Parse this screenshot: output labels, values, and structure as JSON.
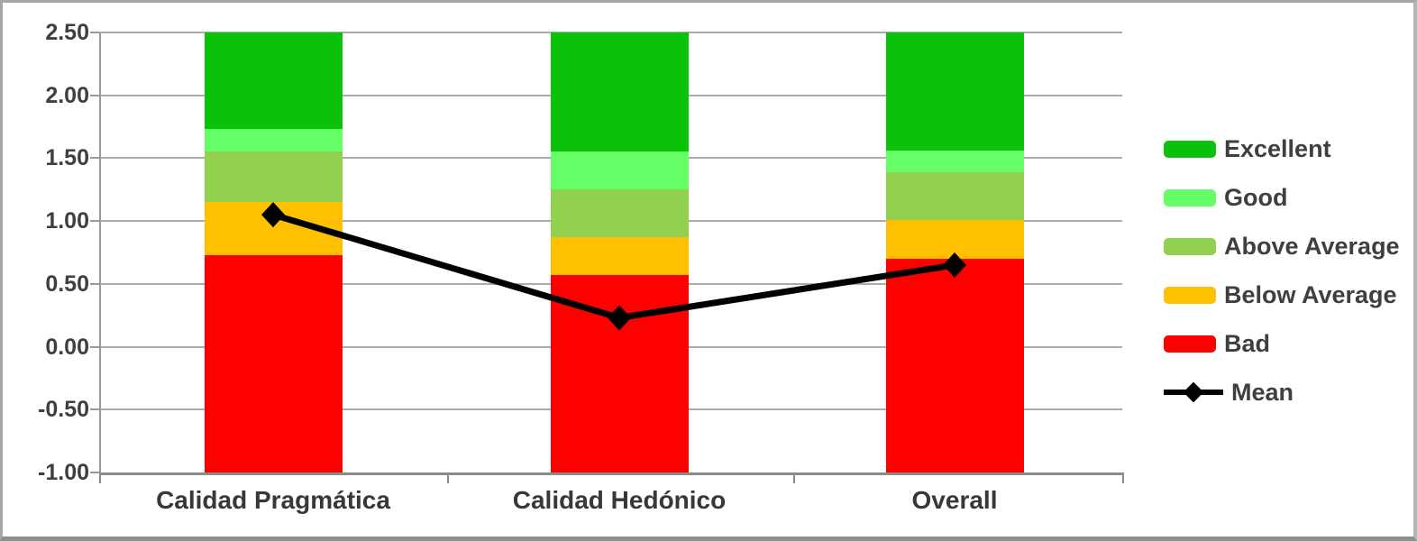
{
  "chart_data": {
    "type": "bar",
    "subtype": "stacked-column-with-line-overlay",
    "title": "",
    "categories": [
      "Calidad Pragmática",
      "Calidad Hedónico",
      "Overall"
    ],
    "stack_base": -1.0,
    "series": [
      {
        "name": "Bad",
        "color": "#fe0000",
        "values": [
          1.73,
          1.57,
          1.7
        ]
      },
      {
        "name": "Below Average",
        "color": "#ffc000",
        "values": [
          0.42,
          0.3,
          0.31
        ]
      },
      {
        "name": "Above Average",
        "color": "#92d050",
        "values": [
          0.4,
          0.38,
          0.38
        ]
      },
      {
        "name": "Good",
        "color": "#66fe66",
        "values": [
          0.18,
          0.3,
          0.17
        ]
      },
      {
        "name": "Excellent",
        "color": "#0bc20b",
        "values": [
          0.77,
          0.95,
          0.94
        ]
      }
    ],
    "line_series": {
      "name": "Mean",
      "color": "#000000",
      "marker": "diamond",
      "values": [
        1.05,
        0.23,
        0.65
      ]
    },
    "ylim": [
      -1.0,
      2.5
    ],
    "ytick_step": 0.5,
    "yticks": [
      2.5,
      2.0,
      1.5,
      1.0,
      0.5,
      0.0,
      -0.5,
      -1.0
    ],
    "ytick_labels": [
      "2.50",
      "2.00",
      "1.50",
      "1.00",
      "0.50",
      "0.00",
      "-0.50",
      "-1.00"
    ],
    "grid": true,
    "legend_position": "right",
    "legend": [
      {
        "label": "Excellent",
        "series": "Excellent"
      },
      {
        "label": "Good",
        "series": "Good"
      },
      {
        "label": "Above Average",
        "series": "Above Average"
      },
      {
        "label": "Below Average",
        "series": "Below Average"
      },
      {
        "label": "Bad",
        "series": "Bad"
      },
      {
        "label": "Mean",
        "series": "Mean"
      }
    ]
  },
  "colors": {
    "grid": "#ababab",
    "axis": "#8c8c8c",
    "text": "#3f3f3f",
    "frame_border": "#a6a6a6",
    "background": "#ffffff"
  }
}
